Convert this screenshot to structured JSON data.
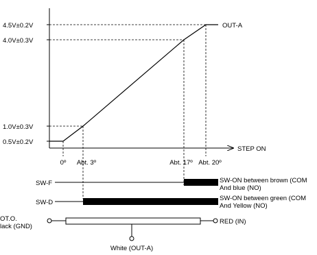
{
  "chart_data": {
    "type": "line",
    "x_axis_label": "STEP ON",
    "y_tick_labels": [
      "4.5V±0.2V",
      "4.0V±0.3V",
      "1.0V±0.3V",
      "0.5V±0.2V"
    ],
    "x_tick_labels": [
      "0º",
      "Abt. 3º",
      "Abt. 17º",
      "Abt. 20º"
    ],
    "series": [
      {
        "name": "OUT-A",
        "points": [
          {
            "x": 0,
            "y": 0.5
          },
          {
            "x": 3,
            "y": 1.0
          },
          {
            "x": 17,
            "y": 4.0
          },
          {
            "x": 20,
            "y": 4.5
          },
          {
            "x": 22,
            "y": 4.5
          }
        ]
      }
    ]
  },
  "switches": {
    "swf": {
      "label": "SW-F",
      "on_from": "Abt. 17º",
      "desc_line1": "SW-ON between brown (COM",
      "desc_line2": "And blue (NO)"
    },
    "swd": {
      "label": "SW-D",
      "on_from": "Abt. 3º",
      "desc_line1": "SW-ON between green (COM",
      "desc_line2": "And Yellow (NO)"
    }
  },
  "potentiometer": {
    "left_line1": "OT.O.",
    "left_line2": "lack (GND)",
    "right": "RED (IN)",
    "bottom": "White (OUT-A)"
  }
}
